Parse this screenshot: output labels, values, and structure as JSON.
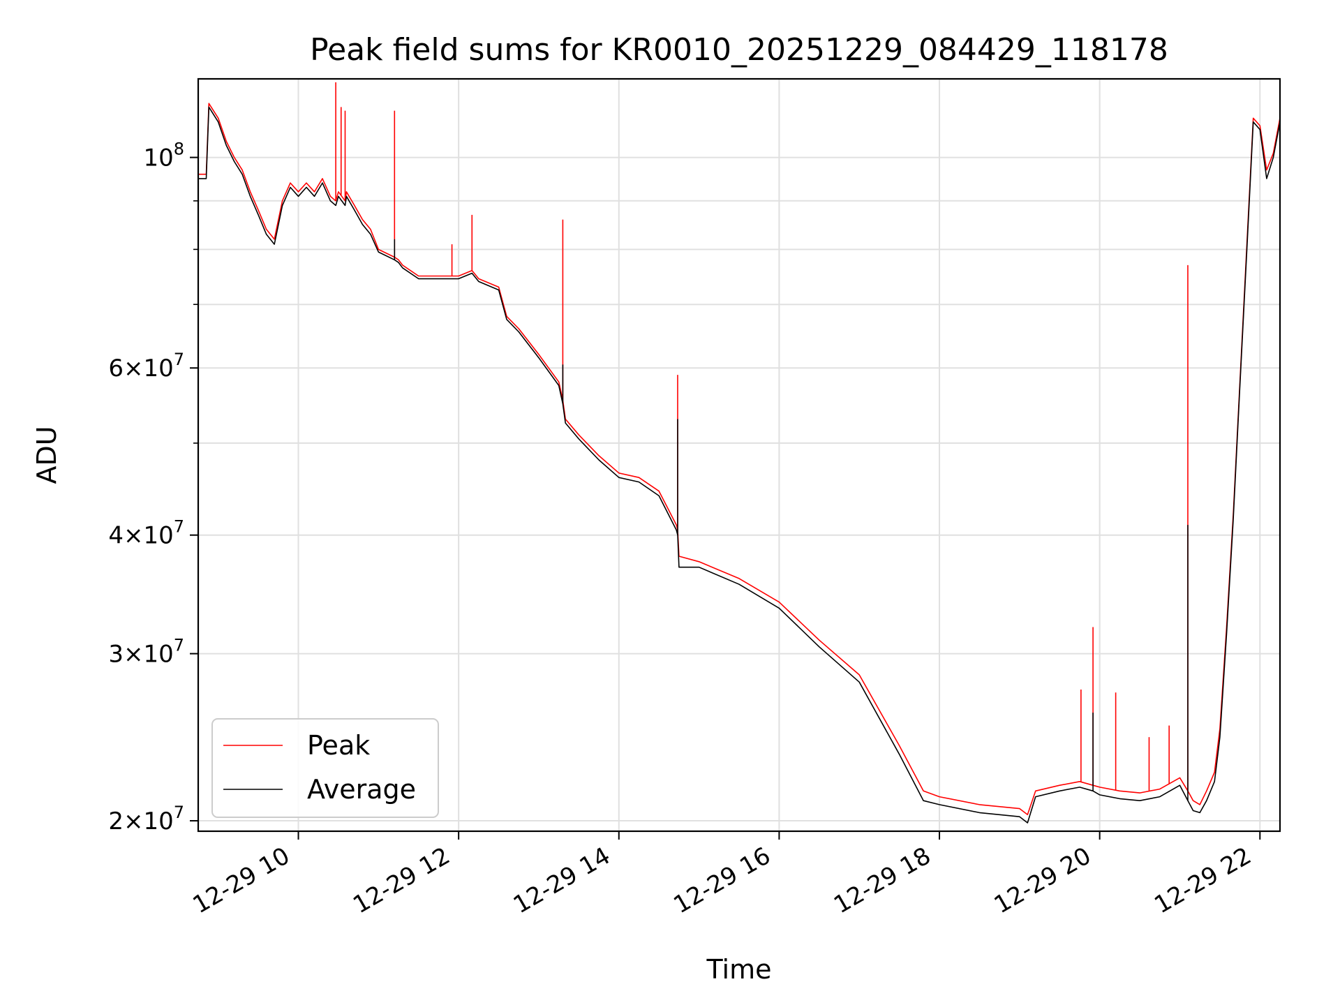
{
  "chart_data": {
    "type": "line",
    "title": "Peak field sums for KR0010_20251229_084429_118178",
    "xlabel": "Time",
    "ylabel": "ADU",
    "yscale": "log",
    "xlim": [
      "2025-12-29T08:45",
      "2025-12-29T22:15"
    ],
    "ylim": [
      19500000,
      121000000
    ],
    "grid": true,
    "legend_position": "lower-left",
    "x_tick_labels": [
      "12-29 10",
      "12-29 12",
      "12-29 14",
      "12-29 16",
      "12-29 18",
      "12-29 20",
      "12-29 22"
    ],
    "x_ticks": [
      "2025-12-29T10:00",
      "2025-12-29T12:00",
      "2025-12-29T14:00",
      "2025-12-29T16:00",
      "2025-12-29T18:00",
      "2025-12-29T20:00",
      "2025-12-29T22:00"
    ],
    "y_major_ticks": [
      {
        "value": 20000000,
        "mantissa": "2",
        "exp": "7"
      },
      {
        "value": 30000000,
        "mantissa": "3",
        "exp": "7"
      },
      {
        "value": 40000000,
        "mantissa": "4",
        "exp": "7"
      },
      {
        "value": 60000000,
        "mantissa": "6",
        "exp": "7"
      },
      {
        "value": 100000000,
        "mantissa": "",
        "exp": "8"
      }
    ],
    "y_minor_gridlines": [
      50000000,
      70000000,
      80000000,
      90000000
    ],
    "series": [
      {
        "name": "Peak",
        "color": "#ff0000",
        "x": [
          "2025-12-29T08:45",
          "2025-12-29T08:51",
          "2025-12-29T08:53",
          "2025-12-29T09:00",
          "2025-12-29T09:06",
          "2025-12-29T09:12",
          "2025-12-29T09:18",
          "2025-12-29T09:24",
          "2025-12-29T09:30",
          "2025-12-29T09:36",
          "2025-12-29T09:42",
          "2025-12-29T09:48",
          "2025-12-29T09:54",
          "2025-12-29T10:00",
          "2025-12-29T10:06",
          "2025-12-29T10:12",
          "2025-12-29T10:18",
          "2025-12-29T10:24",
          "2025-12-29T10:28",
          "2025-12-29T10:30",
          "2025-12-29T10:35",
          "2025-12-29T10:36",
          "2025-12-29T10:42",
          "2025-12-29T10:48",
          "2025-12-29T10:54",
          "2025-12-29T11:00",
          "2025-12-29T11:12",
          "2025-12-29T11:15",
          "2025-12-29T11:18",
          "2025-12-29T11:30",
          "2025-12-29T11:45",
          "2025-12-29T12:00",
          "2025-12-29T12:10",
          "2025-12-29T12:15",
          "2025-12-29T12:30",
          "2025-12-29T12:36",
          "2025-12-29T12:45",
          "2025-12-29T13:00",
          "2025-12-29T13:15",
          "2025-12-29T13:18",
          "2025-12-29T13:20",
          "2025-12-29T13:30",
          "2025-12-29T13:45",
          "2025-12-29T14:00",
          "2025-12-29T14:15",
          "2025-12-29T14:30",
          "2025-12-29T14:43",
          "2025-12-29T14:44",
          "2025-12-29T14:45",
          "2025-12-29T15:00",
          "2025-12-29T15:30",
          "2025-12-29T16:00",
          "2025-12-29T16:30",
          "2025-12-29T17:00",
          "2025-12-29T17:30",
          "2025-12-29T17:48",
          "2025-12-29T18:00",
          "2025-12-29T18:30",
          "2025-12-29T19:00",
          "2025-12-29T19:06",
          "2025-12-29T19:12",
          "2025-12-29T19:30",
          "2025-12-29T19:45",
          "2025-12-29T19:55",
          "2025-12-29T20:00",
          "2025-12-29T20:15",
          "2025-12-29T20:30",
          "2025-12-29T20:45",
          "2025-12-29T21:00",
          "2025-12-29T21:06",
          "2025-12-29T21:10",
          "2025-12-29T21:15",
          "2025-12-29T21:20",
          "2025-12-29T21:26",
          "2025-12-29T21:30",
          "2025-12-29T21:35",
          "2025-12-29T21:40",
          "2025-12-29T21:45",
          "2025-12-29T21:50",
          "2025-12-29T21:55",
          "2025-12-29T22:00",
          "2025-12-29T22:05",
          "2025-12-29T22:10",
          "2025-12-29T22:15"
        ],
        "y": [
          96000000,
          96000000,
          114000000,
          110000000,
          104000000,
          100000000,
          97000000,
          92000000,
          88000000,
          84000000,
          82000000,
          90000000,
          94000000,
          92000000,
          94000000,
          92000000,
          95000000,
          91000000,
          90000000,
          92000000,
          90000000,
          92000000,
          89000000,
          86000000,
          84000000,
          80000000,
          78500000,
          78000000,
          77000000,
          75000000,
          75000000,
          75000000,
          76000000,
          74500000,
          73000000,
          68000000,
          66000000,
          62000000,
          58000000,
          55500000,
          53000000,
          51000000,
          48500000,
          46500000,
          46000000,
          44500000,
          41000000,
          40500000,
          38000000,
          37500000,
          36000000,
          34000000,
          31000000,
          28500000,
          24000000,
          21500000,
          21200000,
          20800000,
          20600000,
          20300000,
          21500000,
          21800000,
          22000000,
          21800000,
          21700000,
          21500000,
          21400000,
          21600000,
          22200000,
          21500000,
          21000000,
          20800000,
          21500000,
          22500000,
          25000000,
          32000000,
          42000000,
          58000000,
          80000000,
          110000000,
          108000000,
          97000000,
          101000000,
          110000000
        ],
        "spikes": [
          {
            "x": "2025-12-29T10:28",
            "y": 120000000
          },
          {
            "x": "2025-12-29T10:32",
            "y": 113000000
          },
          {
            "x": "2025-12-29T10:35",
            "y": 112000000
          },
          {
            "x": "2025-12-29T11:12",
            "y": 112000000
          },
          {
            "x": "2025-12-29T11:55",
            "y": 81000000
          },
          {
            "x": "2025-12-29T12:10",
            "y": 87000000
          },
          {
            "x": "2025-12-29T13:18",
            "y": 86000000
          },
          {
            "x": "2025-12-29T14:44",
            "y": 59000000
          },
          {
            "x": "2025-12-29T19:46",
            "y": 27500000
          },
          {
            "x": "2025-12-29T19:55",
            "y": 32000000
          },
          {
            "x": "2025-12-29T20:12",
            "y": 27300000
          },
          {
            "x": "2025-12-29T20:37",
            "y": 24500000
          },
          {
            "x": "2025-12-29T20:52",
            "y": 25200000
          },
          {
            "x": "2025-12-29T21:06",
            "y": 77000000
          }
        ]
      },
      {
        "name": "Average",
        "color": "#000000",
        "x": [
          "2025-12-29T08:45",
          "2025-12-29T08:51",
          "2025-12-29T08:53",
          "2025-12-29T09:00",
          "2025-12-29T09:06",
          "2025-12-29T09:12",
          "2025-12-29T09:18",
          "2025-12-29T09:24",
          "2025-12-29T09:30",
          "2025-12-29T09:36",
          "2025-12-29T09:42",
          "2025-12-29T09:48",
          "2025-12-29T09:54",
          "2025-12-29T10:00",
          "2025-12-29T10:06",
          "2025-12-29T10:12",
          "2025-12-29T10:18",
          "2025-12-29T10:24",
          "2025-12-29T10:28",
          "2025-12-29T10:30",
          "2025-12-29T10:35",
          "2025-12-29T10:36",
          "2025-12-29T10:42",
          "2025-12-29T10:48",
          "2025-12-29T10:54",
          "2025-12-29T11:00",
          "2025-12-29T11:12",
          "2025-12-29T11:15",
          "2025-12-29T11:18",
          "2025-12-29T11:30",
          "2025-12-29T11:45",
          "2025-12-29T12:00",
          "2025-12-29T12:10",
          "2025-12-29T12:15",
          "2025-12-29T12:30",
          "2025-12-29T12:36",
          "2025-12-29T12:45",
          "2025-12-29T13:00",
          "2025-12-29T13:15",
          "2025-12-29T13:18",
          "2025-12-29T13:20",
          "2025-12-29T13:30",
          "2025-12-29T13:45",
          "2025-12-29T14:00",
          "2025-12-29T14:15",
          "2025-12-29T14:30",
          "2025-12-29T14:43",
          "2025-12-29T14:44",
          "2025-12-29T14:45",
          "2025-12-29T15:00",
          "2025-12-29T15:30",
          "2025-12-29T16:00",
          "2025-12-29T16:30",
          "2025-12-29T17:00",
          "2025-12-29T17:30",
          "2025-12-29T17:48",
          "2025-12-29T18:00",
          "2025-12-29T18:30",
          "2025-12-29T19:00",
          "2025-12-29T19:06",
          "2025-12-29T19:12",
          "2025-12-29T19:30",
          "2025-12-29T19:45",
          "2025-12-29T19:55",
          "2025-12-29T20:00",
          "2025-12-29T20:15",
          "2025-12-29T20:30",
          "2025-12-29T20:45",
          "2025-12-29T21:00",
          "2025-12-29T21:06",
          "2025-12-29T21:10",
          "2025-12-29T21:15",
          "2025-12-29T21:20",
          "2025-12-29T21:26",
          "2025-12-29T21:30",
          "2025-12-29T21:35",
          "2025-12-29T21:40",
          "2025-12-29T21:45",
          "2025-12-29T21:50",
          "2025-12-29T21:55",
          "2025-12-29T22:00",
          "2025-12-29T22:05",
          "2025-12-29T22:10",
          "2025-12-29T22:15"
        ],
        "y": [
          95000000,
          95000000,
          113000000,
          109000000,
          103000000,
          99000000,
          96000000,
          91000000,
          87000000,
          83000000,
          81000000,
          89000000,
          93000000,
          91000000,
          93000000,
          91000000,
          94000000,
          90000000,
          89000000,
          91000000,
          89000000,
          91000000,
          88000000,
          85000000,
          83000000,
          79500000,
          78000000,
          77500000,
          76500000,
          74500000,
          74500000,
          74500000,
          75500000,
          74000000,
          72500000,
          67500000,
          65500000,
          61500000,
          57500000,
          55000000,
          52500000,
          50500000,
          48000000,
          46000000,
          45500000,
          44000000,
          40500000,
          40000000,
          37000000,
          37000000,
          35500000,
          33500000,
          30500000,
          28000000,
          23500000,
          21000000,
          20800000,
          20400000,
          20200000,
          19900000,
          21200000,
          21500000,
          21700000,
          21500000,
          21300000,
          21100000,
          21000000,
          21200000,
          21800000,
          21000000,
          20500000,
          20400000,
          21000000,
          22000000,
          24500000,
          31500000,
          41500000,
          57500000,
          79000000,
          109000000,
          107000000,
          95000000,
          100000000,
          109000000
        ],
        "spikes": [
          {
            "x": "2025-12-29T11:12",
            "y": 82000000
          },
          {
            "x": "2025-12-29T13:18",
            "y": 60500000
          },
          {
            "x": "2025-12-29T14:44",
            "y": 53000000
          },
          {
            "x": "2025-12-29T19:55",
            "y": 26000000
          },
          {
            "x": "2025-12-29T21:06",
            "y": 41000000
          }
        ]
      }
    ]
  }
}
